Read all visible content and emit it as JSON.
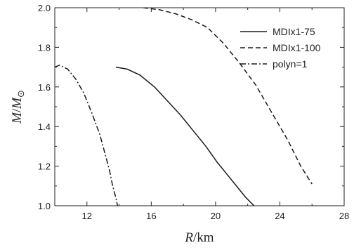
{
  "chart_data": {
    "type": "line",
    "title": "",
    "xlabel": "R / km",
    "xlabel_parts": {
      "var": "R",
      "unit": "km"
    },
    "ylabel": "M/M⊙",
    "ylabel_parts": {
      "var": "M",
      "sun": "M",
      "sun_symbol": "⊙"
    },
    "xlim": [
      10,
      28
    ],
    "ylim": [
      1.0,
      2.0
    ],
    "xticks": [
      12,
      16,
      20,
      24,
      28
    ],
    "yticks": [
      1.0,
      1.2,
      1.4,
      1.6,
      1.8,
      2.0
    ],
    "xtick_labels": [
      "12",
      "16",
      "20",
      "24",
      "28"
    ],
    "ytick_labels": [
      "1.0",
      "1.2",
      "1.4",
      "1.6",
      "1.8",
      "2.0"
    ],
    "grid": false,
    "legend_position": "top-right",
    "series": [
      {
        "name": "MDIx1-75",
        "style": "solid",
        "color": "#1a1a1a",
        "points": [
          [
            13.8,
            1.7
          ],
          [
            14.5,
            1.69
          ],
          [
            15.3,
            1.66
          ],
          [
            16.2,
            1.6
          ],
          [
            17.0,
            1.53
          ],
          [
            17.8,
            1.46
          ],
          [
            18.6,
            1.38
          ],
          [
            19.4,
            1.3
          ],
          [
            20.1,
            1.22
          ],
          [
            20.8,
            1.15
          ],
          [
            21.4,
            1.09
          ],
          [
            21.9,
            1.04
          ],
          [
            22.4,
            1.0
          ]
        ]
      },
      {
        "name": "MDIx1-100",
        "style": "dashed",
        "color": "#1a1a1a",
        "points": [
          [
            15.5,
            2.0
          ],
          [
            16.5,
            1.99
          ],
          [
            17.5,
            1.97
          ],
          [
            18.5,
            1.94
          ],
          [
            19.5,
            1.9
          ],
          [
            20.5,
            1.82
          ],
          [
            21.5,
            1.72
          ],
          [
            22.5,
            1.61
          ],
          [
            23.5,
            1.47
          ],
          [
            24.5,
            1.33
          ],
          [
            25.3,
            1.2
          ],
          [
            26.0,
            1.11
          ]
        ]
      },
      {
        "name": "polyn=1",
        "style": "dashdot",
        "color": "#1a1a1a",
        "points": [
          [
            10.0,
            1.7
          ],
          [
            10.3,
            1.71
          ],
          [
            10.8,
            1.69
          ],
          [
            11.3,
            1.64
          ],
          [
            11.8,
            1.57
          ],
          [
            12.3,
            1.47
          ],
          [
            12.8,
            1.36
          ],
          [
            13.1,
            1.27
          ],
          [
            13.4,
            1.18
          ],
          [
            13.6,
            1.1
          ],
          [
            13.8,
            1.04
          ],
          [
            13.9,
            1.0
          ]
        ]
      }
    ]
  }
}
